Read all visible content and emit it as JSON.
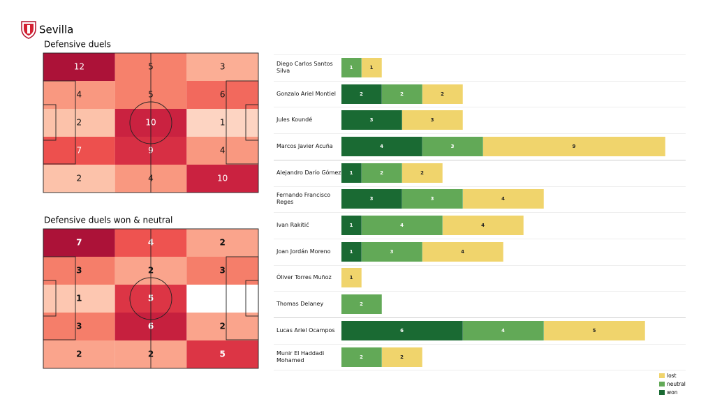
{
  "header": {
    "title": "Sevilla"
  },
  "chart_data": [
    {
      "type": "heatmap",
      "title": "Defensive duels",
      "values": [
        [
          12,
          5,
          3
        ],
        [
          4,
          5,
          6
        ],
        [
          2,
          10,
          1
        ],
        [
          7,
          9,
          4
        ],
        [
          2,
          4,
          10
        ]
      ],
      "colormap": [
        "#fee5d9",
        "#fcbba1",
        "#f7866f",
        "#ec4b4b",
        "#d02541",
        "#ac1238"
      ]
    },
    {
      "type": "heatmap",
      "title": "Defensive duels won & neutral",
      "values": [
        [
          7,
          4,
          2
        ],
        [
          3,
          2,
          3
        ],
        [
          1,
          5,
          null
        ],
        [
          3,
          6,
          2
        ],
        [
          2,
          2,
          5
        ]
      ],
      "colormap": [
        "#fee5d9",
        "#fcbba1",
        "#f7866f",
        "#ec4b4b",
        "#d02541",
        "#ac1238"
      ]
    },
    {
      "type": "bar",
      "orientation": "horizontal",
      "stacked": true,
      "categories": [
        "Diego Carlos Santos Silva",
        "Gonzalo Ariel Montiel",
        "Jules Koundé",
        "Marcos Javier Acuña",
        "Alejandro Darío Gómez",
        "Fernando Francisco Reges",
        "Ivan Rakitić",
        "Joan Jordán Moreno",
        "Óliver Torres Muñoz",
        "Thomas Delaney",
        "Lucas Ariel Ocampos",
        "Munir El Haddadi Mohamed"
      ],
      "series": [
        {
          "name": "won",
          "color": "#1a6a33",
          "values": [
            null,
            2,
            3,
            4,
            1,
            3,
            1,
            1,
            null,
            null,
            6,
            null
          ]
        },
        {
          "name": "neutral",
          "color": "#62a957",
          "values": [
            1,
            2,
            null,
            3,
            2,
            3,
            4,
            3,
            null,
            2,
            4,
            2
          ]
        },
        {
          "name": "lost",
          "color": "#f0d46c",
          "values": [
            1,
            2,
            3,
            9,
            2,
            4,
            4,
            4,
            1,
            null,
            5,
            2
          ]
        }
      ],
      "legend": "lower right"
    }
  ]
}
